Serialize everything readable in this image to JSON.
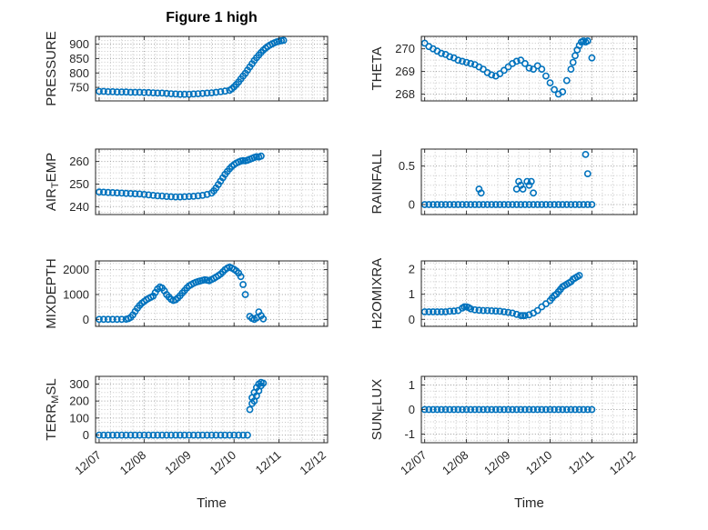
{
  "figure": {
    "title": "Figure 1 high",
    "xlabel": "Time",
    "marker_color": "#0072BD",
    "box_color": "#262626",
    "grid_major_color": "#9e9e9e",
    "grid_minor_color": "#c6c6c6",
    "background": "#ffffff",
    "xlim": [
      -0.08,
      5.08
    ]
  },
  "x_ticks": {
    "values": [
      0,
      1,
      2,
      3,
      4,
      5
    ],
    "labels": [
      "12/07",
      "12/08",
      "12/09",
      "12/10",
      "12/11",
      "12/12"
    ]
  },
  "chart_data": [
    {
      "type": "scatter",
      "name": "pressure",
      "ylabel": "PRESSURE",
      "label_parts": [
        {
          "t": "PRESSURE"
        }
      ],
      "ylim": [
        703,
        927
      ],
      "yticks": [
        750,
        800,
        850,
        900
      ],
      "x": [
        0,
        0.1,
        0.2,
        0.3,
        0.4,
        0.5,
        0.6,
        0.7,
        0.8,
        0.9,
        1,
        1.1,
        1.2,
        1.3,
        1.4,
        1.5,
        1.6,
        1.7,
        1.8,
        1.9,
        2,
        2.1,
        2.2,
        2.3,
        2.4,
        2.5,
        2.6,
        2.7,
        2.8,
        2.9,
        2.95,
        3,
        3.05,
        3.1,
        3.15,
        3.2,
        3.25,
        3.3,
        3.35,
        3.4,
        3.45,
        3.5,
        3.55,
        3.6,
        3.65,
        3.7,
        3.75,
        3.8,
        3.85,
        3.9,
        3.95,
        4,
        4.05,
        4.1
      ],
      "y": [
        736,
        736,
        735,
        735,
        734,
        734,
        734,
        733,
        733,
        733,
        732,
        732,
        731,
        730,
        730,
        729,
        728,
        727,
        726,
        726,
        726,
        727,
        728,
        729,
        730,
        731,
        733,
        735,
        737,
        740,
        745,
        752,
        760,
        769,
        779,
        789,
        799,
        810,
        821,
        832,
        843,
        853,
        862,
        871,
        879,
        886,
        892,
        897,
        901,
        905,
        908,
        910,
        912,
        913
      ]
    },
    {
      "type": "scatter",
      "name": "theta",
      "ylabel": "THETA",
      "label_parts": [
        {
          "t": "THETA"
        }
      ],
      "ylim": [
        267.7,
        270.55
      ],
      "yticks": [
        268,
        269,
        270
      ],
      "x": [
        0,
        0.1,
        0.2,
        0.3,
        0.4,
        0.5,
        0.6,
        0.7,
        0.8,
        0.9,
        1,
        1.1,
        1.2,
        1.3,
        1.4,
        1.5,
        1.6,
        1.7,
        1.8,
        1.9,
        2,
        2.1,
        2.2,
        2.3,
        2.4,
        2.5,
        2.6,
        2.7,
        2.8,
        2.9,
        3,
        3.1,
        3.2,
        3.3,
        3.4,
        3.5,
        3.55,
        3.6,
        3.65,
        3.7,
        3.75,
        3.8,
        3.85,
        3.9,
        4
      ],
      "y": [
        270.25,
        270.1,
        270,
        269.9,
        269.8,
        269.75,
        269.65,
        269.6,
        269.5,
        269.45,
        269.4,
        269.35,
        269.3,
        269.2,
        269.1,
        268.95,
        268.85,
        268.8,
        268.9,
        269.05,
        269.2,
        269.35,
        269.45,
        269.5,
        269.35,
        269.15,
        269.1,
        269.25,
        269.1,
        268.8,
        268.5,
        268.2,
        268,
        268.1,
        268.6,
        269.1,
        269.4,
        269.7,
        269.95,
        270.15,
        270.3,
        270.35,
        270.3,
        270.35,
        269.6
      ]
    },
    {
      "type": "scatter",
      "name": "air-temp",
      "ylabel": "AIR_TEMP",
      "label_parts": [
        {
          "t": "AIR"
        },
        {
          "s": "T"
        },
        {
          "t": "EMP"
        }
      ],
      "ylim": [
        236.5,
        265.5
      ],
      "yticks": [
        240,
        250,
        260
      ],
      "x": [
        0,
        0.1,
        0.2,
        0.3,
        0.4,
        0.5,
        0.6,
        0.7,
        0.8,
        0.9,
        1,
        1.1,
        1.2,
        1.3,
        1.4,
        1.5,
        1.6,
        1.7,
        1.8,
        1.9,
        2,
        2.1,
        2.2,
        2.3,
        2.4,
        2.5,
        2.55,
        2.6,
        2.65,
        2.7,
        2.75,
        2.8,
        2.85,
        2.9,
        2.95,
        3,
        3.05,
        3.1,
        3.15,
        3.2,
        3.25,
        3.3,
        3.35,
        3.4,
        3.45,
        3.5,
        3.55,
        3.6
      ],
      "y": [
        246.5,
        246.4,
        246.3,
        246.2,
        246.1,
        246,
        245.9,
        245.8,
        245.7,
        245.6,
        245.4,
        245.2,
        245,
        244.8,
        244.7,
        244.5,
        244.4,
        244.3,
        244.3,
        244.4,
        244.5,
        244.6,
        244.8,
        245,
        245.4,
        246,
        247,
        248.3,
        249.8,
        251.3,
        252.8,
        254.3,
        255.6,
        256.8,
        257.8,
        258.6,
        259.3,
        259.8,
        260.2,
        260.4,
        260.3,
        260.6,
        261,
        261.4,
        261.8,
        262.1,
        262,
        262.4
      ]
    },
    {
      "type": "scatter",
      "name": "rainfall",
      "ylabel": "RAINFALL",
      "label_parts": [
        {
          "t": "RAINFALL"
        }
      ],
      "ylim": [
        -0.13,
        0.72
      ],
      "yticks": [
        0,
        0.5
      ],
      "x": [
        0,
        0.1,
        0.2,
        0.3,
        0.4,
        0.5,
        0.6,
        0.7,
        0.8,
        0.9,
        1,
        1.1,
        1.2,
        1.3,
        1.4,
        1.5,
        1.6,
        1.7,
        1.8,
        1.9,
        2,
        2.1,
        2.2,
        2.3,
        2.4,
        2.5,
        2.6,
        2.7,
        2.8,
        2.9,
        3,
        3.1,
        3.2,
        3.3,
        3.4,
        3.5,
        3.6,
        3.7,
        3.8,
        3.9,
        4,
        1.3,
        1.35,
        2.2,
        2.25,
        2.3,
        2.35,
        2.45,
        2.5,
        2.55,
        2.6,
        3.85,
        3.9
      ],
      "y": [
        0,
        0,
        0,
        0,
        0,
        0,
        0,
        0,
        0,
        0,
        0,
        0,
        0,
        0,
        0,
        0,
        0,
        0,
        0,
        0,
        0,
        0,
        0,
        0,
        0,
        0,
        0,
        0,
        0,
        0,
        0,
        0,
        0,
        0,
        0,
        0,
        0,
        0,
        0,
        0,
        0,
        0.2,
        0.15,
        0.2,
        0.3,
        0.25,
        0.2,
        0.3,
        0.25,
        0.3,
        0.15,
        0.65,
        0.4
      ]
    },
    {
      "type": "scatter",
      "name": "mixdepth",
      "ylabel": "MIXDEPTH",
      "label_parts": [
        {
          "t": "MIXDEPTH"
        }
      ],
      "ylim": [
        -280,
        2350
      ],
      "yticks": [
        0,
        1000,
        2000
      ],
      "x": [
        0,
        0.1,
        0.2,
        0.3,
        0.4,
        0.5,
        0.6,
        0.65,
        0.7,
        0.75,
        0.8,
        0.85,
        0.9,
        0.95,
        1,
        1.05,
        1.1,
        1.15,
        1.2,
        1.25,
        1.3,
        1.35,
        1.4,
        1.45,
        1.5,
        1.55,
        1.6,
        1.65,
        1.7,
        1.75,
        1.8,
        1.85,
        1.9,
        1.95,
        2,
        2.05,
        2.1,
        2.15,
        2.2,
        2.25,
        2.3,
        2.35,
        2.4,
        2.45,
        2.5,
        2.55,
        2.6,
        2.65,
        2.7,
        2.75,
        2.8,
        2.85,
        2.9,
        2.95,
        3,
        3.05,
        3.1,
        3.15,
        3.2,
        3.25,
        3.35,
        3.4,
        3.45,
        3.5,
        3.55,
        3.6,
        3.65
      ],
      "y": [
        0,
        0,
        0,
        0,
        0,
        0,
        10,
        30,
        80,
        180,
        320,
        450,
        560,
        650,
        720,
        790,
        840,
        890,
        940,
        1080,
        1220,
        1300,
        1260,
        1150,
        1000,
        900,
        810,
        760,
        790,
        860,
        950,
        1060,
        1160,
        1260,
        1350,
        1400,
        1450,
        1490,
        1520,
        1545,
        1570,
        1590,
        1575,
        1555,
        1600,
        1650,
        1700,
        1760,
        1820,
        1910,
        2000,
        2060,
        2100,
        2060,
        2010,
        1950,
        1860,
        1720,
        1400,
        1000,
        120,
        40,
        0,
        60,
        300,
        150,
        20
      ]
    },
    {
      "type": "scatter",
      "name": "h2omixra",
      "ylabel": "H2OMIXRA",
      "label_parts": [
        {
          "t": "H2OMIXRA"
        }
      ],
      "ylim": [
        -0.28,
        2.33
      ],
      "yticks": [
        0,
        1,
        2
      ],
      "x": [
        0,
        0.1,
        0.2,
        0.3,
        0.4,
        0.5,
        0.6,
        0.7,
        0.8,
        0.9,
        0.95,
        1,
        1.05,
        1.1,
        1.2,
        1.3,
        1.4,
        1.5,
        1.6,
        1.7,
        1.8,
        1.9,
        2,
        2.1,
        2.2,
        2.3,
        2.35,
        2.4,
        2.5,
        2.6,
        2.7,
        2.8,
        2.9,
        3,
        3.05,
        3.1,
        3.15,
        3.2,
        3.25,
        3.3,
        3.35,
        3.4,
        3.45,
        3.5,
        3.55,
        3.6,
        3.65,
        3.7
      ],
      "y": [
        0.3,
        0.3,
        0.3,
        0.3,
        0.3,
        0.3,
        0.32,
        0.33,
        0.35,
        0.45,
        0.5,
        0.5,
        0.47,
        0.42,
        0.38,
        0.36,
        0.35,
        0.35,
        0.34,
        0.33,
        0.32,
        0.3,
        0.28,
        0.25,
        0.2,
        0.15,
        0.15,
        0.15,
        0.18,
        0.25,
        0.35,
        0.5,
        0.62,
        0.75,
        0.85,
        0.95,
        1,
        1.1,
        1.2,
        1.3,
        1.35,
        1.4,
        1.45,
        1.5,
        1.6,
        1.65,
        1.7,
        1.75
      ]
    },
    {
      "type": "scatter",
      "name": "terr-msl",
      "ylabel": "TERR_MSL",
      "label_parts": [
        {
          "t": "TERR"
        },
        {
          "s": "M"
        },
        {
          "t": "SL"
        }
      ],
      "ylim": [
        -45,
        345
      ],
      "yticks": [
        0,
        100,
        200,
        300
      ],
      "x": [
        0,
        0.1,
        0.2,
        0.3,
        0.4,
        0.5,
        0.6,
        0.7,
        0.8,
        0.9,
        1,
        1.1,
        1.2,
        1.3,
        1.4,
        1.5,
        1.6,
        1.7,
        1.8,
        1.9,
        2,
        2.1,
        2.2,
        2.3,
        2.4,
        2.5,
        2.6,
        2.7,
        2.8,
        2.9,
        3,
        3.1,
        3.2,
        3.3,
        3.35,
        3.4,
        3.4,
        3.45,
        3.45,
        3.5,
        3.5,
        3.55,
        3.55,
        3.6,
        3.6,
        3.65
      ],
      "y": [
        0,
        0,
        0,
        0,
        0,
        0,
        0,
        0,
        0,
        0,
        0,
        0,
        0,
        0,
        0,
        0,
        0,
        0,
        0,
        0,
        0,
        0,
        0,
        0,
        0,
        0,
        0,
        0,
        0,
        0,
        0,
        0,
        0,
        0,
        150,
        185,
        220,
        200,
        250,
        230,
        280,
        260,
        300,
        290,
        310,
        305
      ]
    },
    {
      "type": "scatter",
      "name": "sun-flux",
      "ylabel": "SUN_FLUX",
      "label_parts": [
        {
          "t": "SUN"
        },
        {
          "s": "F"
        },
        {
          "t": "LUX"
        }
      ],
      "ylim": [
        -1.35,
        1.35
      ],
      "yticks": [
        -1,
        0,
        1
      ],
      "x": [
        0,
        0.1,
        0.2,
        0.3,
        0.4,
        0.5,
        0.6,
        0.7,
        0.8,
        0.9,
        1,
        1.1,
        1.2,
        1.3,
        1.4,
        1.5,
        1.6,
        1.7,
        1.8,
        1.9,
        2,
        2.1,
        2.2,
        2.3,
        2.4,
        2.5,
        2.6,
        2.7,
        2.8,
        2.9,
        3,
        3.1,
        3.2,
        3.3,
        3.4,
        3.5,
        3.6,
        3.7,
        3.8,
        3.9,
        4
      ],
      "y": [
        0,
        0,
        0,
        0,
        0,
        0,
        0,
        0,
        0,
        0,
        0,
        0,
        0,
        0,
        0,
        0,
        0,
        0,
        0,
        0,
        0,
        0,
        0,
        0,
        0,
        0,
        0,
        0,
        0,
        0,
        0,
        0,
        0,
        0,
        0,
        0,
        0,
        0,
        0,
        0,
        0
      ]
    }
  ]
}
